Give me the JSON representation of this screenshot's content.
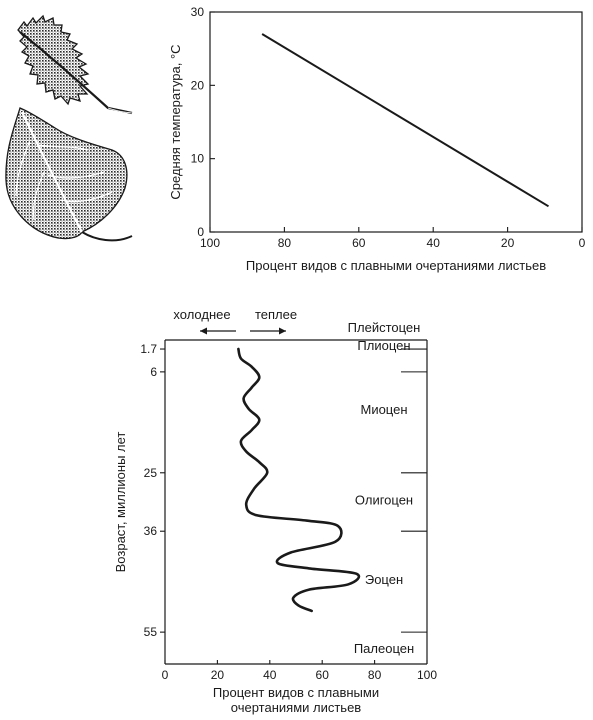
{
  "chart_data": [
    {
      "type": "line",
      "title": "",
      "xlabel": "Процент видов с плавными очертаниями листьев",
      "ylabel": "Средняя температура, °C",
      "xlim": [
        100,
        0
      ],
      "ylim": [
        0,
        30
      ],
      "x_ticks": [
        "100",
        "80",
        "60",
        "40",
        "20",
        "0"
      ],
      "y_ticks": [
        "0",
        "10",
        "20",
        "30"
      ],
      "series": [
        {
          "points": [
            {
              "x": 86,
              "y": 27
            },
            {
              "x": 9,
              "y": 3.5
            }
          ]
        }
      ],
      "grid": false
    },
    {
      "type": "line",
      "title": "",
      "xlabel": "Процент видов с плавными очертаниями листьев",
      "ylabel": "Возраст, миллионы лет",
      "xlim": [
        0,
        100
      ],
      "ylim": [
        61,
        0
      ],
      "x_ticks": [
        "0",
        "20",
        "40",
        "60",
        "80",
        "100"
      ],
      "y_ticks": [
        "1.7",
        "6",
        "25",
        "36",
        "55"
      ],
      "direction_labels": {
        "left": "холоднее",
        "right": "теплее"
      },
      "epochs": [
        {
          "name": "Плейстоцен",
          "age": 0
        },
        {
          "name": "Плиоцен",
          "age": 1.7
        },
        {
          "name": "Миоцен",
          "age": 13
        },
        {
          "name": "Олигоцен",
          "age": 30
        },
        {
          "name": "Эоцен",
          "age": 45
        },
        {
          "name": "Палеоцен",
          "age": 58
        }
      ],
      "epoch_boundaries": [
        1.7,
        6,
        25,
        36,
        55
      ],
      "series": [
        {
          "points": [
            {
              "x": 28,
              "y": 1.7
            },
            {
              "x": 29,
              "y": 3.5
            },
            {
              "x": 33,
              "y": 5
            },
            {
              "x": 36,
              "y": 7
            },
            {
              "x": 33,
              "y": 9
            },
            {
              "x": 30,
              "y": 11
            },
            {
              "x": 32,
              "y": 13
            },
            {
              "x": 36,
              "y": 15
            },
            {
              "x": 33,
              "y": 17
            },
            {
              "x": 29,
              "y": 19
            },
            {
              "x": 31,
              "y": 21
            },
            {
              "x": 36,
              "y": 23
            },
            {
              "x": 39,
              "y": 25
            },
            {
              "x": 34,
              "y": 28
            },
            {
              "x": 31,
              "y": 31
            },
            {
              "x": 35,
              "y": 33
            },
            {
              "x": 54,
              "y": 34
            },
            {
              "x": 66,
              "y": 35
            },
            {
              "x": 65,
              "y": 38
            },
            {
              "x": 48,
              "y": 40
            },
            {
              "x": 43,
              "y": 42
            },
            {
              "x": 55,
              "y": 43
            },
            {
              "x": 73,
              "y": 44
            },
            {
              "x": 70,
              "y": 46
            },
            {
              "x": 55,
              "y": 47
            },
            {
              "x": 49,
              "y": 48.5
            },
            {
              "x": 51,
              "y": 50
            },
            {
              "x": 56,
              "y": 51
            }
          ]
        }
      ],
      "grid": false
    }
  ]
}
